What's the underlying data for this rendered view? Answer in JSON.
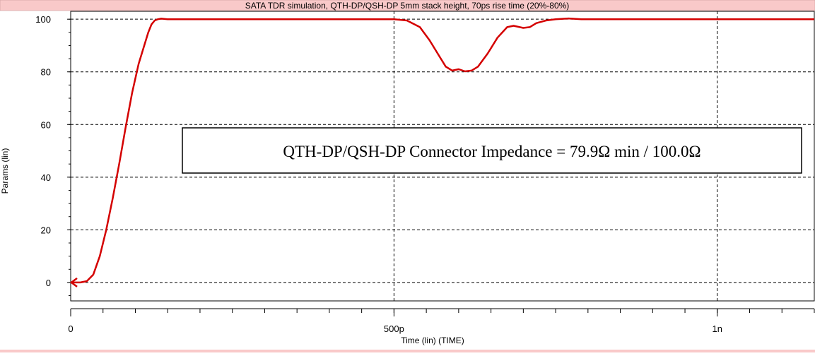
{
  "window": {
    "title": "SATA TDR simulation, QTH-DP/QSH-DP 5mm stack height, 70ps rise time (20%-80%)"
  },
  "colors": {
    "title_bar_bg": "#f9c9c9",
    "bottom_bar_bg": "#f9c9c9",
    "trace": "#d40000",
    "grid": "#000000",
    "plot_bg": "#ffffff"
  },
  "chart_data": {
    "type": "line",
    "title": "SATA TDR simulation, QTH-DP/QSH-DP 5mm stack height, 70ps rise time (20%-80%)",
    "xlabel": "Time (lin) (TIME)",
    "ylabel": "Params (lin)",
    "xlim": [
      0,
      1.15e-09
    ],
    "ylim": [
      -7,
      103
    ],
    "grid": true,
    "x_ticks": [
      {
        "value": 0,
        "label": "0"
      },
      {
        "value": 5e-10,
        "label": "500p"
      },
      {
        "value": 1e-09,
        "label": "1n"
      }
    ],
    "y_ticks": [
      {
        "value": 0,
        "label": "0"
      },
      {
        "value": 20,
        "label": "20"
      },
      {
        "value": 40,
        "label": "40"
      },
      {
        "value": 60,
        "label": "60"
      },
      {
        "value": 80,
        "label": "80"
      },
      {
        "value": 100,
        "label": "100"
      }
    ],
    "series": [
      {
        "x": [
          0,
          1.5e-11,
          2.5e-11,
          3.5e-11,
          4.5e-11,
          5.5e-11,
          6.5e-11,
          7.5e-11,
          8.5e-11,
          9.5e-11,
          1.05e-10,
          1.15e-10,
          1.2e-10,
          1.25e-10,
          1.3e-10,
          1.35e-10,
          1.4e-10,
          1.5e-10,
          1.6e-10,
          1.7e-10,
          2e-10,
          3e-10,
          4e-10,
          5e-10,
          5.2e-10,
          5.4e-10,
          5.55e-10,
          5.7e-10,
          5.8e-10,
          5.9e-10,
          6e-10,
          6.1e-10,
          6.2e-10,
          6.3e-10,
          6.45e-10,
          6.6e-10,
          6.75e-10,
          6.85e-10,
          7e-10,
          7.1e-10,
          7.2e-10,
          7.35e-10,
          7.5e-10,
          7.7e-10,
          7.9e-10,
          8.1e-10,
          8.5e-10,
          9e-10,
          1e-09,
          1.1e-09,
          1.15e-09
        ],
        "y": [
          0,
          0,
          0.5,
          3,
          10,
          20,
          32,
          45,
          59,
          72,
          83,
          91,
          95,
          98,
          99.5,
          100,
          100.2,
          100,
          100,
          100,
          100,
          100,
          100,
          100,
          99.5,
          97,
          92,
          86,
          82,
          80.5,
          81,
          80.2,
          80.5,
          82,
          87,
          93,
          97,
          97.5,
          96.7,
          97,
          98.5,
          99.5,
          100,
          100.3,
          100,
          100,
          100,
          100,
          100,
          100,
          100
        ]
      }
    ],
    "annotations": [
      {
        "text": "QTH-DP/QSH-DP Connector Impedance = 79.9Ω min / 100.0Ω"
      }
    ]
  }
}
